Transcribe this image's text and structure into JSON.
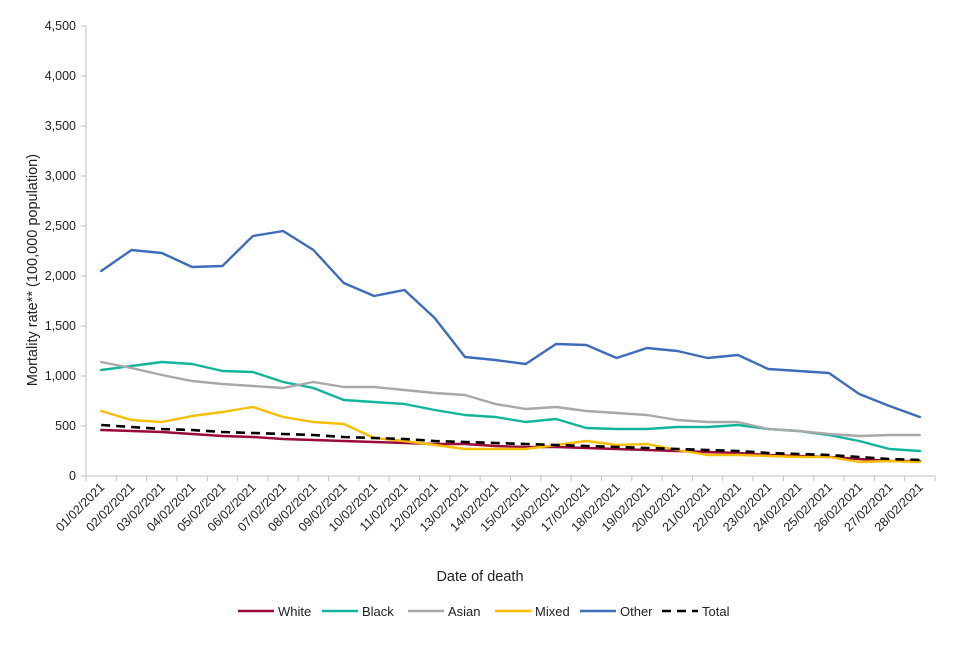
{
  "chart_data": {
    "type": "line",
    "title": "",
    "xlabel": "Date of death",
    "ylabel": "Mortality rate** (100,000 population)",
    "ylim": [
      0,
      4500
    ],
    "yticks": [
      0,
      500,
      1000,
      1500,
      2000,
      2500,
      3000,
      3500,
      4000,
      4500
    ],
    "ytick_labels": [
      "0",
      "500",
      "1,000",
      "1,500",
      "2,000",
      "2,500",
      "3,000",
      "3,500",
      "4,000",
      "4,500"
    ],
    "grid": false,
    "legend_position": "bottom",
    "categories": [
      "01/02/2021",
      "02/02/2021",
      "03/02/2021",
      "04/02/2021",
      "05/02/2021",
      "06/02/2021",
      "07/02/2021",
      "08/02/2021",
      "09/02/2021",
      "10/02/2021",
      "11/02/2021",
      "12/02/2021",
      "13/02/2021",
      "14/02/2021",
      "15/02/2021",
      "16/02/2021",
      "17/02/2021",
      "18/02/2021",
      "19/02/2021",
      "20/02/2021",
      "21/02/2021",
      "22/02/2021",
      "23/02/2021",
      "24/02/2021",
      "25/02/2021",
      "26/02/2021",
      "27/02/2021",
      "28/02/2021"
    ],
    "series": [
      {
        "name": "White",
        "color": "#9b0a3c",
        "dash": false,
        "values": [
          460,
          450,
          440,
          420,
          400,
          390,
          370,
          360,
          350,
          340,
          330,
          320,
          320,
          300,
          290,
          290,
          280,
          270,
          260,
          250,
          240,
          230,
          210,
          200,
          190,
          170,
          150,
          150
        ]
      },
      {
        "name": "Black",
        "color": "#12b59a",
        "dash": false,
        "values": [
          1060,
          1100,
          1140,
          1120,
          1050,
          1040,
          940,
          880,
          760,
          740,
          720,
          660,
          610,
          590,
          540,
          570,
          480,
          470,
          470,
          490,
          490,
          510,
          470,
          450,
          410,
          350,
          270,
          250
        ]
      },
      {
        "name": "Asian",
        "color": "#a8a8a8",
        "dash": false,
        "values": [
          1140,
          1080,
          1010,
          950,
          920,
          900,
          880,
          940,
          890,
          890,
          860,
          830,
          810,
          720,
          670,
          690,
          650,
          630,
          610,
          560,
          540,
          540,
          470,
          450,
          420,
          400,
          410,
          410
        ]
      },
      {
        "name": "Mixed",
        "color": "#f7be00",
        "dash": false,
        "values": [
          650,
          560,
          540,
          600,
          640,
          690,
          590,
          540,
          520,
          380,
          350,
          310,
          270,
          270,
          270,
          310,
          350,
          310,
          320,
          260,
          210,
          210,
          200,
          190,
          190,
          140,
          150,
          140
        ]
      },
      {
        "name": "Other",
        "color": "#3d6cb9",
        "dash": false,
        "values": [
          2050,
          2260,
          2230,
          2090,
          2100,
          2400,
          2450,
          2260,
          1930,
          1800,
          1860,
          1580,
          1190,
          1160,
          1120,
          1320,
          1310,
          1180,
          1280,
          1250,
          1180,
          1210,
          1070,
          1050,
          1030,
          820,
          700,
          590
        ]
      },
      {
        "name": "Total",
        "color": "#000000",
        "dash": true,
        "values": [
          510,
          490,
          470,
          460,
          440,
          430,
          420,
          410,
          390,
          380,
          370,
          350,
          340,
          330,
          320,
          310,
          300,
          290,
          280,
          270,
          260,
          250,
          230,
          220,
          210,
          190,
          170,
          160
        ]
      }
    ]
  }
}
